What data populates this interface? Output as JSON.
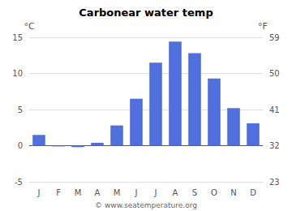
{
  "chart_data": {
    "type": "bar",
    "title": "Carbonear water temp",
    "categories": [
      "J",
      "F",
      "M",
      "A",
      "M",
      "J",
      "J",
      "A",
      "S",
      "O",
      "N",
      "D"
    ],
    "values": [
      1.5,
      -0.1,
      -0.2,
      0.4,
      2.8,
      6.5,
      11.5,
      14.4,
      12.8,
      9.3,
      5.2,
      3.1
    ],
    "ylim": [
      -5,
      15
    ],
    "yticks": [
      -5,
      0,
      5,
      10,
      15
    ],
    "y2lim": [
      23,
      59
    ],
    "y2ticks": [
      23,
      32,
      41,
      50,
      59
    ],
    "ylabel": "°C",
    "y2label": "°F",
    "annotations": [
      "© www.seatemperature.org"
    ],
    "grid": true
  }
}
